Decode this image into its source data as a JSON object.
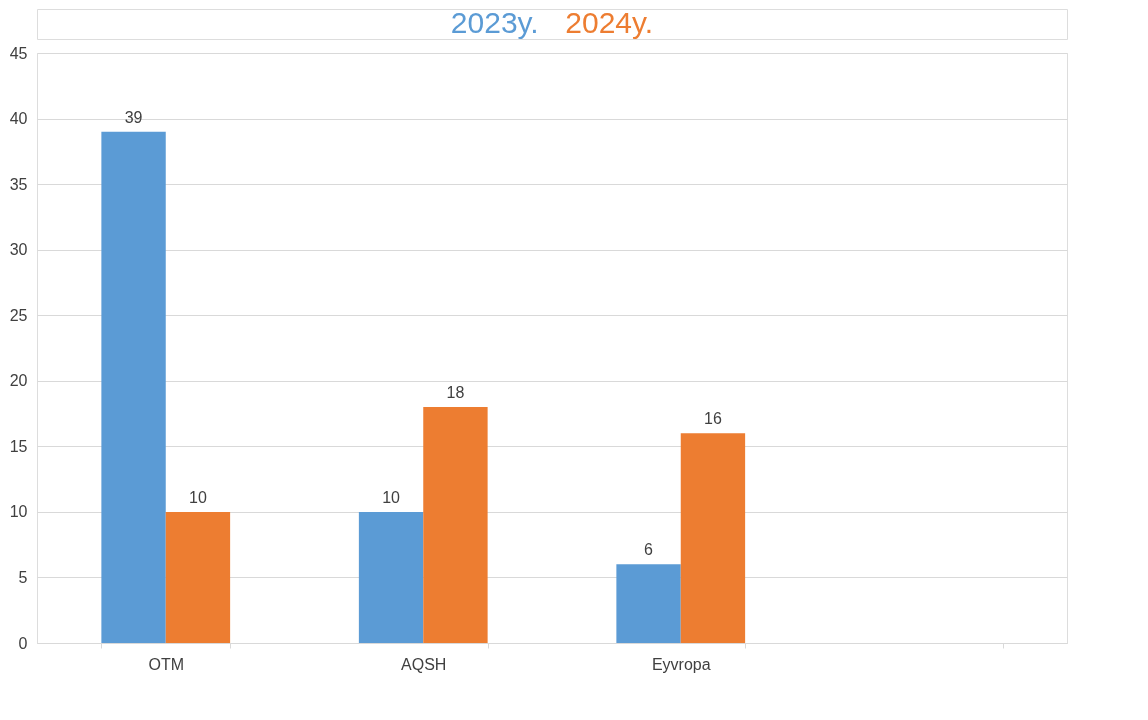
{
  "chart_data": {
    "type": "bar",
    "categories": [
      "OTM",
      "AQSH",
      "Eyvropa",
      null
    ],
    "series": [
      {
        "name": "2023y.",
        "color": "#5b9bd5",
        "values": [
          39,
          10,
          6,
          null
        ]
      },
      {
        "name": "2024y.",
        "color": "#ed7d31",
        "values": [
          10,
          18,
          16,
          null
        ]
      }
    ],
    "ylim": [
      0,
      45
    ],
    "yticks": [
      0,
      5,
      10,
      15,
      20,
      25,
      30,
      35,
      40,
      45
    ],
    "grid": "y",
    "data_labels": true,
    "legend": "top"
  }
}
